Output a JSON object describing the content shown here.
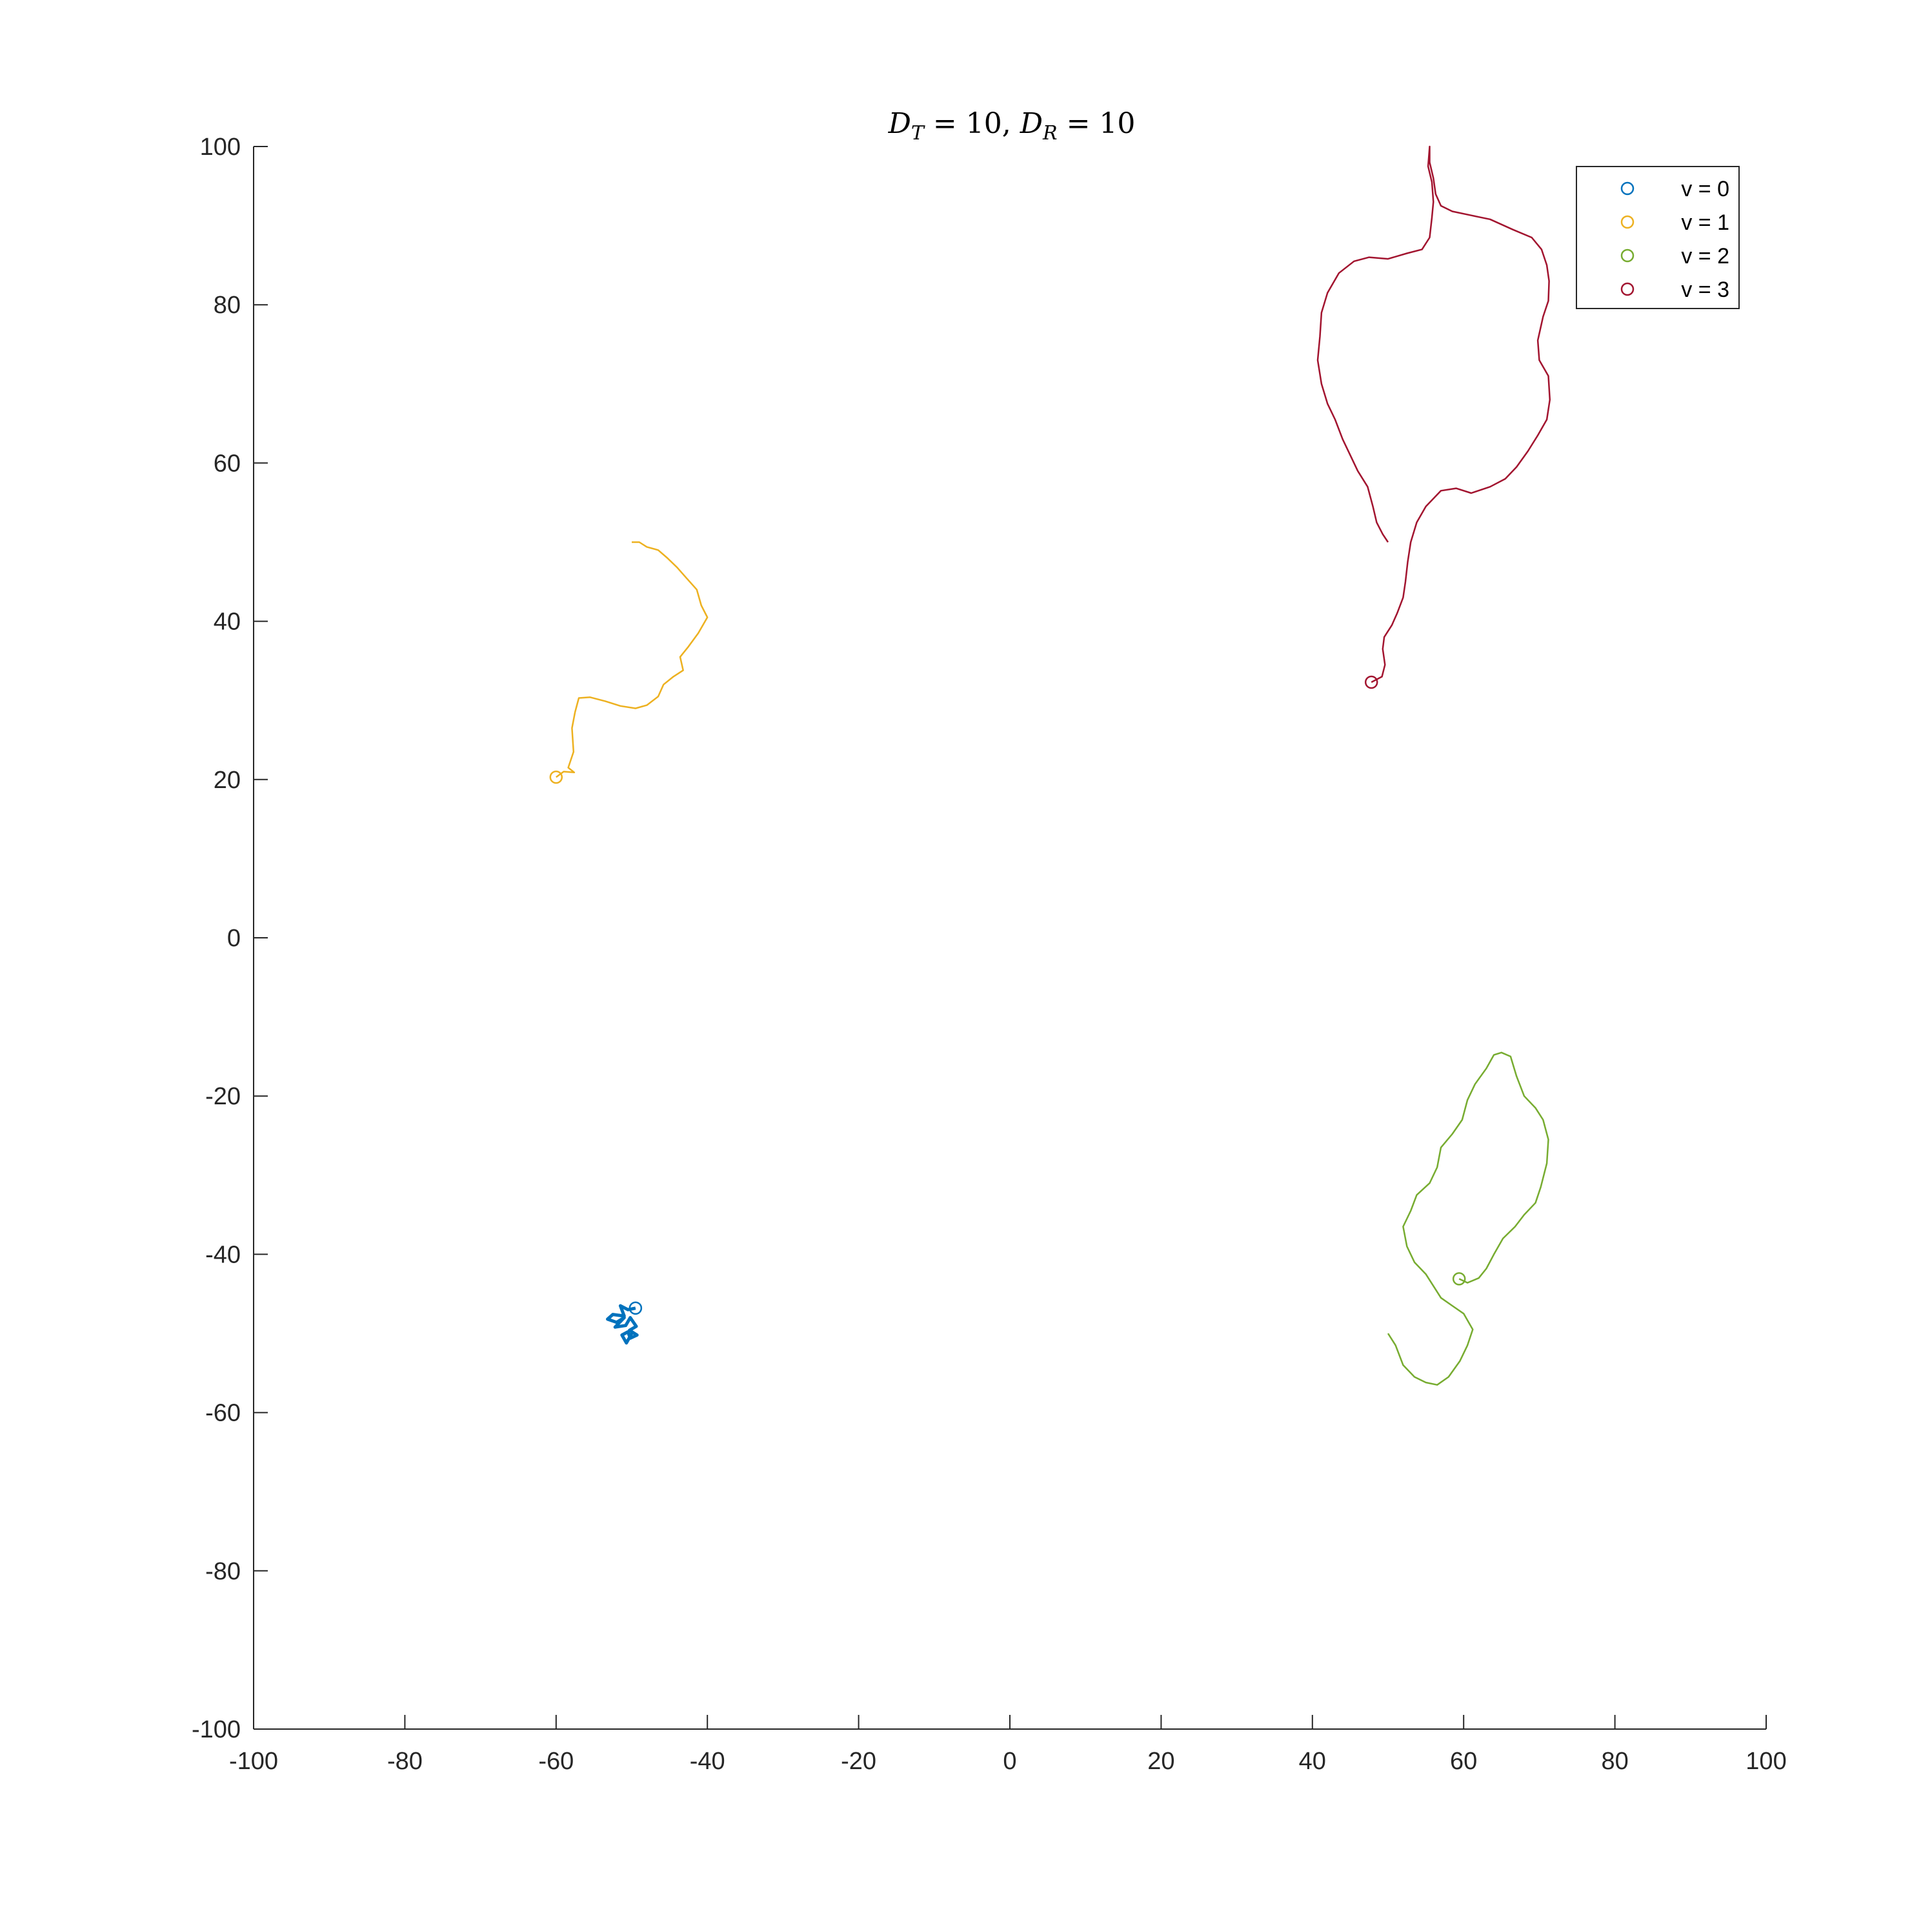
{
  "chart_data": {
    "type": "line",
    "title": "D_T = 10, D_R = 10",
    "title_parts": {
      "a_sym": "D",
      "a_sub": "T",
      "a_eq": " = 10, ",
      "b_sym": "D",
      "b_sub": "R",
      "b_eq": " = 10"
    },
    "xlabel": "",
    "ylabel": "",
    "xlim": [
      -100,
      100
    ],
    "ylim": [
      -100,
      100
    ],
    "xticks": [
      -100,
      -80,
      -60,
      -40,
      -20,
      0,
      20,
      40,
      60,
      80,
      100
    ],
    "yticks": [
      -100,
      -80,
      -60,
      -40,
      -20,
      0,
      20,
      40,
      60,
      80,
      100
    ],
    "grid": false,
    "legend_position": "top-right",
    "series": [
      {
        "name": "v = 0",
        "color": "#0072BD",
        "start_marker": [
          -49.5,
          -46.8
        ],
        "points": [
          [
            -49.5,
            -46.8
          ],
          [
            -50.5,
            -47.0
          ],
          [
            -51.5,
            -46.5
          ],
          [
            -51.0,
            -47.8
          ],
          [
            -52.5,
            -47.6
          ],
          [
            -53.2,
            -48.2
          ],
          [
            -52.0,
            -48.6
          ],
          [
            -51.0,
            -48.0
          ],
          [
            -52.2,
            -49.2
          ],
          [
            -50.8,
            -49.0
          ],
          [
            -50.2,
            -48.0
          ],
          [
            -49.4,
            -49.1
          ],
          [
            -50.3,
            -49.6
          ],
          [
            -49.3,
            -50.2
          ],
          [
            -50.2,
            -50.6
          ],
          [
            -50.5,
            -49.8
          ],
          [
            -51.3,
            -50.2
          ],
          [
            -50.7,
            -51.2
          ],
          [
            -50.0,
            -50.0
          ]
        ]
      },
      {
        "name": "v = 1",
        "color": "#EDB120",
        "start_marker": [
          -60.0,
          20.3
        ],
        "points": [
          [
            -60.0,
            20.3
          ],
          [
            -59.0,
            21.0
          ],
          [
            -57.6,
            20.9
          ],
          [
            -58.4,
            21.5
          ],
          [
            -57.7,
            23.5
          ],
          [
            -57.9,
            26.5
          ],
          [
            -57.5,
            28.5
          ],
          [
            -57.0,
            30.3
          ],
          [
            -55.5,
            30.4
          ],
          [
            -53.5,
            29.9
          ],
          [
            -51.5,
            29.3
          ],
          [
            -49.5,
            29.0
          ],
          [
            -48.0,
            29.4
          ],
          [
            -46.5,
            30.5
          ],
          [
            -45.8,
            32.0
          ],
          [
            -44.5,
            33.0
          ],
          [
            -43.2,
            33.8
          ],
          [
            -43.6,
            35.5
          ],
          [
            -42.5,
            36.8
          ],
          [
            -41.2,
            38.5
          ],
          [
            -40.0,
            40.5
          ],
          [
            -40.8,
            42.0
          ],
          [
            -41.4,
            44.0
          ],
          [
            -42.8,
            45.5
          ],
          [
            -44.0,
            46.8
          ],
          [
            -45.3,
            48.0
          ],
          [
            -46.5,
            49.0
          ],
          [
            -48.0,
            49.4
          ],
          [
            -49.0,
            50.0
          ],
          [
            -50.0,
            50.0
          ]
        ]
      },
      {
        "name": "v = 2",
        "color": "#77AC30",
        "start_marker": [
          59.4,
          -43.1
        ],
        "points": [
          [
            59.4,
            -43.1
          ],
          [
            60.5,
            -43.6
          ],
          [
            62.0,
            -43.0
          ],
          [
            63.0,
            -41.8
          ],
          [
            64.0,
            -40.0
          ],
          [
            65.2,
            -38.0
          ],
          [
            66.8,
            -36.5
          ],
          [
            68.0,
            -35.0
          ],
          [
            69.5,
            -33.5
          ],
          [
            70.2,
            -31.5
          ],
          [
            71.0,
            -28.5
          ],
          [
            71.2,
            -25.5
          ],
          [
            70.5,
            -23.0
          ],
          [
            69.5,
            -21.5
          ],
          [
            68.0,
            -20.0
          ],
          [
            67.0,
            -17.5
          ],
          [
            66.2,
            -15.0
          ],
          [
            65.0,
            -14.5
          ],
          [
            64.0,
            -14.8
          ],
          [
            63.0,
            -16.5
          ],
          [
            61.5,
            -18.5
          ],
          [
            60.5,
            -20.5
          ],
          [
            59.8,
            -23.0
          ],
          [
            58.5,
            -24.8
          ],
          [
            57.0,
            -26.5
          ],
          [
            56.5,
            -29.0
          ],
          [
            55.5,
            -31.0
          ],
          [
            53.8,
            -32.5
          ],
          [
            53.0,
            -34.5
          ],
          [
            52.0,
            -36.5
          ],
          [
            52.5,
            -39.0
          ],
          [
            53.5,
            -41.0
          ],
          [
            55.0,
            -42.5
          ],
          [
            56.0,
            -44.0
          ],
          [
            57.0,
            -45.5
          ],
          [
            58.5,
            -46.5
          ],
          [
            60.0,
            -47.5
          ],
          [
            61.2,
            -49.5
          ],
          [
            60.5,
            -51.5
          ],
          [
            59.5,
            -53.5
          ],
          [
            58.0,
            -55.5
          ],
          [
            56.5,
            -56.5
          ],
          [
            55.0,
            -56.2
          ],
          [
            53.5,
            -55.5
          ],
          [
            52.0,
            -54.0
          ],
          [
            51.0,
            -51.5
          ],
          [
            50.0,
            -50.0
          ]
        ]
      },
      {
        "name": "v = 3",
        "color": "#A2142F",
        "start_marker": [
          47.8,
          32.3
        ],
        "points": [
          [
            47.8,
            32.3
          ],
          [
            49.2,
            33.0
          ],
          [
            49.6,
            34.5
          ],
          [
            49.3,
            36.5
          ],
          [
            49.5,
            38.0
          ],
          [
            50.5,
            39.5
          ],
          [
            51.2,
            41.0
          ],
          [
            52.0,
            43.0
          ],
          [
            52.3,
            45.0
          ],
          [
            52.6,
            47.5
          ],
          [
            53.0,
            50.0
          ],
          [
            53.8,
            52.5
          ],
          [
            55.0,
            54.5
          ],
          [
            57.0,
            56.5
          ],
          [
            59.0,
            56.8
          ],
          [
            61.0,
            56.2
          ],
          [
            63.5,
            57.0
          ],
          [
            65.5,
            58.0
          ],
          [
            67.0,
            59.5
          ],
          [
            68.5,
            61.5
          ],
          [
            69.8,
            63.5
          ],
          [
            71.0,
            65.5
          ],
          [
            71.4,
            68.0
          ],
          [
            71.2,
            71.0
          ],
          [
            70.0,
            73.0
          ],
          [
            69.8,
            75.5
          ],
          [
            70.5,
            78.5
          ],
          [
            71.2,
            80.5
          ],
          [
            71.3,
            83.0
          ],
          [
            71.0,
            85.0
          ],
          [
            70.3,
            87.0
          ],
          [
            69.0,
            88.5
          ],
          [
            66.5,
            89.5
          ],
          [
            63.5,
            90.8
          ],
          [
            61.0,
            91.3
          ],
          [
            58.5,
            91.8
          ],
          [
            57.0,
            92.5
          ],
          [
            56.3,
            94.0
          ],
          [
            56.0,
            96.0
          ],
          [
            55.5,
            98.0
          ],
          [
            55.5,
            100.0
          ],
          [
            55.3,
            97.5
          ],
          [
            55.8,
            95.5
          ],
          [
            56.0,
            93.0
          ],
          [
            55.8,
            91.0
          ],
          [
            55.5,
            88.5
          ],
          [
            54.5,
            87.0
          ],
          [
            52.5,
            86.5
          ],
          [
            50.0,
            85.8
          ],
          [
            47.5,
            86.0
          ],
          [
            45.5,
            85.5
          ],
          [
            43.5,
            84.0
          ],
          [
            42.0,
            81.5
          ],
          [
            41.2,
            79.0
          ],
          [
            41.0,
            76.0
          ],
          [
            40.7,
            73.0
          ],
          [
            41.2,
            70.0
          ],
          [
            42.0,
            67.5
          ],
          [
            43.0,
            65.5
          ],
          [
            44.0,
            63.0
          ],
          [
            45.0,
            61.0
          ],
          [
            46.0,
            59.0
          ],
          [
            47.3,
            57.0
          ],
          [
            48.0,
            54.5
          ],
          [
            48.5,
            52.5
          ],
          [
            49.3,
            51.0
          ],
          [
            50.0,
            50.0
          ]
        ]
      }
    ]
  }
}
